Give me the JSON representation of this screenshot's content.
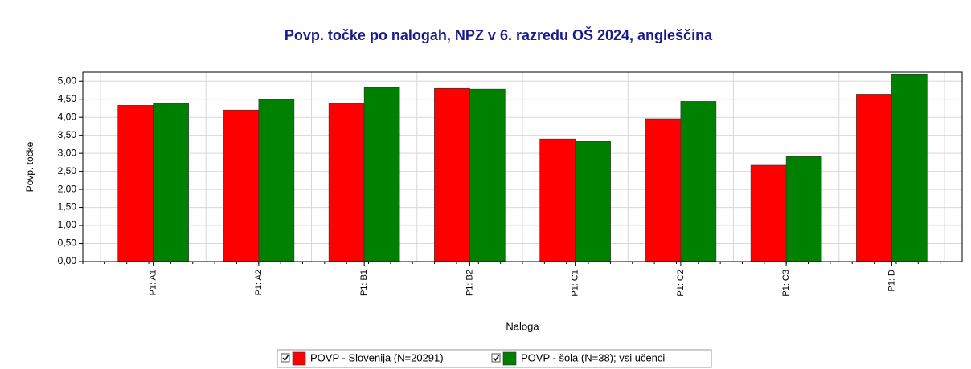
{
  "chart_data": {
    "type": "bar",
    "title": "Povp. točke po nalogah, NPZ v 6. razredu OŠ 2024, angleščina",
    "x_label": "Naloga",
    "y_label": "Povp. točke",
    "categories": [
      "P1: A1",
      "P1: A2",
      "P1: B1",
      "P1: B2",
      "P1: C1",
      "P1: C2",
      "P1: C3",
      "P1: D"
    ],
    "series": [
      {
        "name": "POVP - Slovenija (N=20291)",
        "color": "#ff0000",
        "values": [
          4.33,
          4.2,
          4.38,
          4.8,
          3.4,
          3.96,
          2.67,
          4.64
        ]
      },
      {
        "name": "POVP - šola (N=38); vsi učenci",
        "color": "#008000",
        "values": [
          4.38,
          4.49,
          4.82,
          4.78,
          3.33,
          4.44,
          2.91,
          5.2
        ]
      }
    ],
    "ylim": [
      0,
      5.25
    ],
    "yticks": [
      {
        "value": 0,
        "label": "0,00"
      },
      {
        "value": 0.5,
        "label": "0,50"
      },
      {
        "value": 1,
        "label": "1,00"
      },
      {
        "value": 1.5,
        "label": "1,50"
      },
      {
        "value": 2,
        "label": "2,00"
      },
      {
        "value": 2.5,
        "label": "2,50"
      },
      {
        "value": 3,
        "label": "3,00"
      },
      {
        "value": 3.5,
        "label": "3,50"
      },
      {
        "value": 4,
        "label": "4,00"
      },
      {
        "value": 4.5,
        "label": "4,50"
      },
      {
        "value": 5,
        "label": "5,00"
      }
    ],
    "grid": true,
    "legend": "bottom"
  }
}
